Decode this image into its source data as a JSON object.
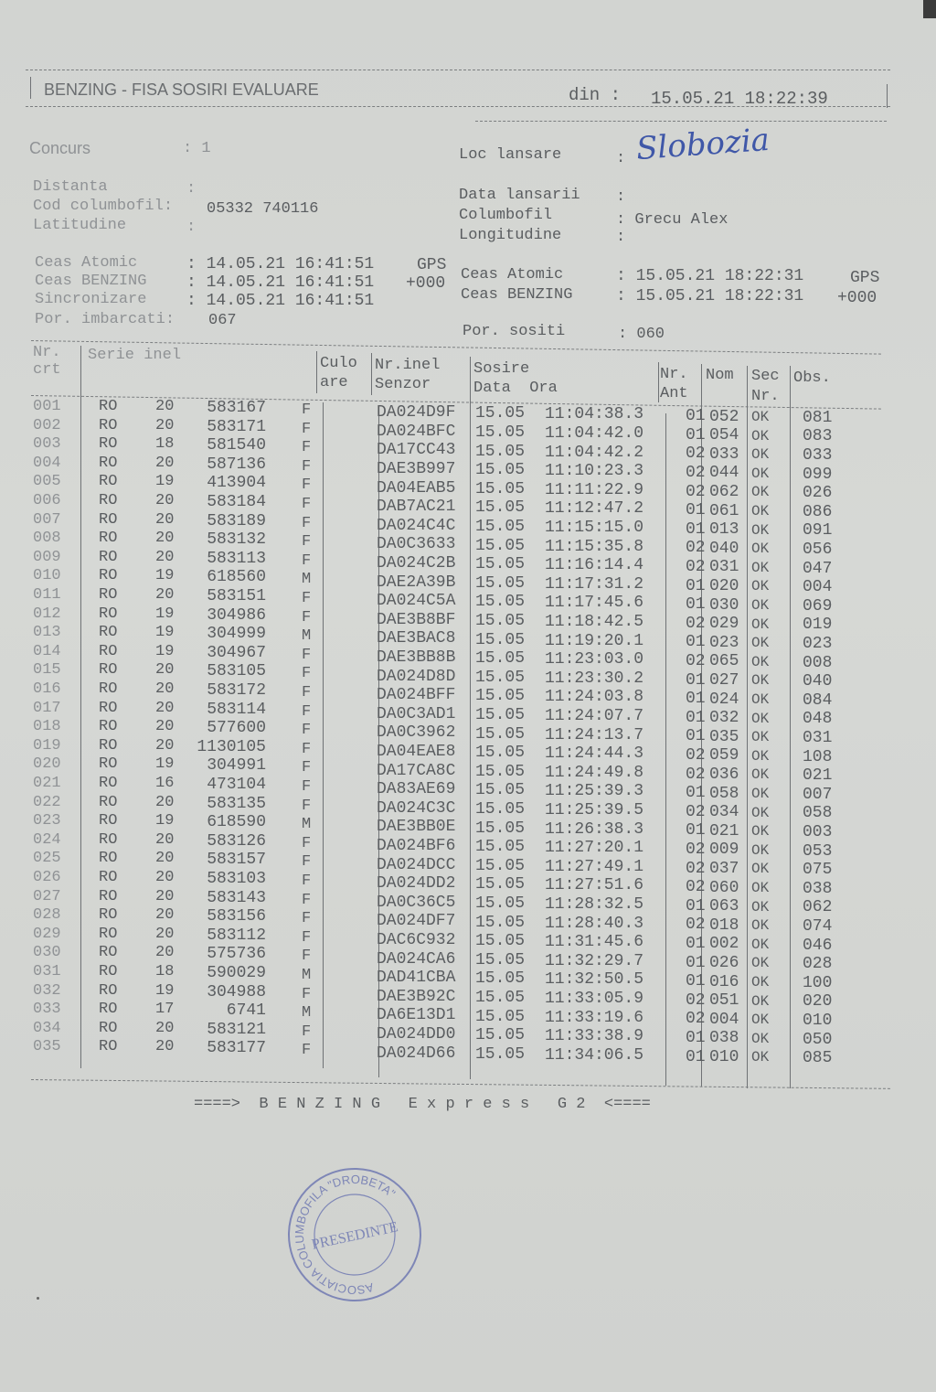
{
  "header": {
    "title": "BENZING - FISA SOSIRI EVALUARE",
    "din_label": "din :",
    "din_value": "15.05.21 18:22:39"
  },
  "info": {
    "concurs_label": "Concurs",
    "concurs_value": ": 1",
    "loc_lansare_label": "Loc lansare",
    "loc_lansare_sep": ":",
    "loc_lansare_value": "Slobozia",
    "distanta_label": "Distanta",
    "distanta_value": ":",
    "cod_label": "Cod columbofil:",
    "cod_value": "05332 740116",
    "latitudine_label": "Latitudine",
    "latitudine_value": ":",
    "data_lansarii_label": "Data lansarii",
    "data_lansarii_value": ":",
    "columbofil_label": "Columbofil",
    "columbofil_value": ": Grecu Alex",
    "longitudine_label": "Longitudine",
    "longitudine_value": ":",
    "left_clocks": [
      {
        "label": "Ceas Atomic",
        "value": ": 14.05.21 16:41:51",
        "suffix": "GPS"
      },
      {
        "label": "Ceas BENZING",
        "value": ": 14.05.21 16:41:51",
        "suffix": "+000"
      },
      {
        "label": "Sincronizare",
        "value": ": 14.05.21 16:41:51",
        "suffix": ""
      }
    ],
    "right_clocks": [
      {
        "label": "Ceas Atomic",
        "value": ": 15.05.21 18:22:31",
        "suffix": "GPS"
      },
      {
        "label": "Ceas BENZING",
        "value": ": 15.05.21 18:22:31",
        "suffix": "+000"
      }
    ],
    "imbarcati_label": "Por. imbarcati:",
    "imbarcati_value": "067",
    "sositi_label": "Por. sositi",
    "sositi_value": ": 060"
  },
  "table": {
    "headers": {
      "nr_crt": [
        "Nr.",
        "crt"
      ],
      "serie_inel": "Serie inel",
      "culoare": [
        "Culo",
        "are"
      ],
      "senzor": [
        "Nr.inel",
        "Senzor"
      ],
      "sosire": [
        "Sosire",
        "Data  Ora"
      ],
      "nr_ant": [
        "Nr.",
        "Ant"
      ],
      "nom": "Nom",
      "sec_nr": [
        "Sec",
        "Nr."
      ],
      "obs": "Obs."
    },
    "rows": [
      [
        "001",
        "RO",
        "20",
        "583167",
        "F",
        "DA024D9F",
        "15.05",
        "11:04:38.3",
        "01",
        "052",
        "OK",
        "081"
      ],
      [
        "002",
        "RO",
        "20",
        "583171",
        "F",
        "DA024BFC",
        "15.05",
        "11:04:42.0",
        "01",
        "054",
        "OK",
        "083"
      ],
      [
        "003",
        "RO",
        "18",
        "581540",
        "F",
        "DA17CC43",
        "15.05",
        "11:04:42.2",
        "02",
        "033",
        "OK",
        "033"
      ],
      [
        "004",
        "RO",
        "20",
        "587136",
        "F",
        "DAE3B997",
        "15.05",
        "11:10:23.3",
        "02",
        "044",
        "OK",
        "099"
      ],
      [
        "005",
        "RO",
        "19",
        "413904",
        "F",
        "DA04EAB5",
        "15.05",
        "11:11:22.9",
        "02",
        "062",
        "OK",
        "026"
      ],
      [
        "006",
        "RO",
        "20",
        "583184",
        "F",
        "DAB7AC21",
        "15.05",
        "11:12:47.2",
        "01",
        "061",
        "OK",
        "086"
      ],
      [
        "007",
        "RO",
        "20",
        "583189",
        "F",
        "DA024C4C",
        "15.05",
        "11:15:15.0",
        "01",
        "013",
        "OK",
        "091"
      ],
      [
        "008",
        "RO",
        "20",
        "583132",
        "F",
        "DA0C3633",
        "15.05",
        "11:15:35.8",
        "02",
        "040",
        "OK",
        "056"
      ],
      [
        "009",
        "RO",
        "20",
        "583113",
        "F",
        "DA024C2B",
        "15.05",
        "11:16:14.4",
        "02",
        "031",
        "OK",
        "047"
      ],
      [
        "010",
        "RO",
        "19",
        "618560",
        "M",
        "DAE2A39B",
        "15.05",
        "11:17:31.2",
        "01",
        "020",
        "OK",
        "004"
      ],
      [
        "011",
        "RO",
        "20",
        "583151",
        "F",
        "DA024C5A",
        "15.05",
        "11:17:45.6",
        "01",
        "030",
        "OK",
        "069"
      ],
      [
        "012",
        "RO",
        "19",
        "304986",
        "F",
        "DAE3B8BF",
        "15.05",
        "11:18:42.5",
        "02",
        "029",
        "OK",
        "019"
      ],
      [
        "013",
        "RO",
        "19",
        "304999",
        "M",
        "DAE3BAC8",
        "15.05",
        "11:19:20.1",
        "01",
        "023",
        "OK",
        "023"
      ],
      [
        "014",
        "RO",
        "19",
        "304967",
        "F",
        "DAE3BB8B",
        "15.05",
        "11:23:03.0",
        "02",
        "065",
        "OK",
        "008"
      ],
      [
        "015",
        "RO",
        "20",
        "583105",
        "F",
        "DA024D8D",
        "15.05",
        "11:23:30.2",
        "01",
        "027",
        "OK",
        "040"
      ],
      [
        "016",
        "RO",
        "20",
        "583172",
        "F",
        "DA024BFF",
        "15.05",
        "11:24:03.8",
        "01",
        "024",
        "OK",
        "084"
      ],
      [
        "017",
        "RO",
        "20",
        "583114",
        "F",
        "DA0C3AD1",
        "15.05",
        "11:24:07.7",
        "01",
        "032",
        "OK",
        "048"
      ],
      [
        "018",
        "RO",
        "20",
        "577600",
        "F",
        "DA0C3962",
        "15.05",
        "11:24:13.7",
        "01",
        "035",
        "OK",
        "031"
      ],
      [
        "019",
        "RO",
        "20",
        "1130105",
        "F",
        "DA04EAE8",
        "15.05",
        "11:24:44.3",
        "02",
        "059",
        "OK",
        "108"
      ],
      [
        "020",
        "RO",
        "19",
        "304991",
        "F",
        "DA17CA8C",
        "15.05",
        "11:24:49.8",
        "02",
        "036",
        "OK",
        "021"
      ],
      [
        "021",
        "RO",
        "16",
        "473104",
        "F",
        "DA83AE69",
        "15.05",
        "11:25:39.3",
        "01",
        "058",
        "OK",
        "007"
      ],
      [
        "022",
        "RO",
        "20",
        "583135",
        "F",
        "DA024C3C",
        "15.05",
        "11:25:39.5",
        "02",
        "034",
        "OK",
        "058"
      ],
      [
        "023",
        "RO",
        "19",
        "618590",
        "M",
        "DAE3BB0E",
        "15.05",
        "11:26:38.3",
        "01",
        "021",
        "OK",
        "003"
      ],
      [
        "024",
        "RO",
        "20",
        "583126",
        "F",
        "DA024BF6",
        "15.05",
        "11:27:20.1",
        "02",
        "009",
        "OK",
        "053"
      ],
      [
        "025",
        "RO",
        "20",
        "583157",
        "F",
        "DA024DCC",
        "15.05",
        "11:27:49.1",
        "02",
        "037",
        "OK",
        "075"
      ],
      [
        "026",
        "RO",
        "20",
        "583103",
        "F",
        "DA024DD2",
        "15.05",
        "11:27:51.6",
        "02",
        "060",
        "OK",
        "038"
      ],
      [
        "027",
        "RO",
        "20",
        "583143",
        "F",
        "DA0C36C5",
        "15.05",
        "11:28:32.5",
        "01",
        "063",
        "OK",
        "062"
      ],
      [
        "028",
        "RO",
        "20",
        "583156",
        "F",
        "DA024DF7",
        "15.05",
        "11:28:40.3",
        "02",
        "018",
        "OK",
        "074"
      ],
      [
        "029",
        "RO",
        "20",
        "583112",
        "F",
        "DAC6C932",
        "15.05",
        "11:31:45.6",
        "01",
        "002",
        "OK",
        "046"
      ],
      [
        "030",
        "RO",
        "20",
        "575736",
        "F",
        "DA024CA6",
        "15.05",
        "11:32:29.7",
        "01",
        "026",
        "OK",
        "028"
      ],
      [
        "031",
        "RO",
        "18",
        "590029",
        "M",
        "DAD41CBA",
        "15.05",
        "11:32:50.5",
        "01",
        "016",
        "OK",
        "100"
      ],
      [
        "032",
        "RO",
        "19",
        "304988",
        "F",
        "DAE3B92C",
        "15.05",
        "11:33:05.9",
        "02",
        "051",
        "OK",
        "020"
      ],
      [
        "033",
        "RO",
        "17",
        "6741",
        "M",
        "DA6E13D1",
        "15.05",
        "11:33:19.6",
        "02",
        "004",
        "OK",
        "010"
      ],
      [
        "034",
        "RO",
        "20",
        "583121",
        "F",
        "DA024DD0",
        "15.05",
        "11:33:38.9",
        "01",
        "038",
        "OK",
        "050"
      ],
      [
        "035",
        "RO",
        "20",
        "583177",
        "F",
        "DA024D66",
        "15.05",
        "11:34:06.5",
        "01",
        "010",
        "OK",
        "085"
      ]
    ]
  },
  "footer": "====>  B E N Z I N G   E x p r e s s   G 2  <====",
  "stamp": {
    "ring_text": "ASOCIATIA COLUMBOFILA \"DROBETA\"",
    "center_text": "PRESEDINTE",
    "color": "#6a74b0"
  },
  "colors": {
    "paper": "#d4d6d3",
    "ink": "#5a5d60",
    "signature": "#3f57a8"
  }
}
